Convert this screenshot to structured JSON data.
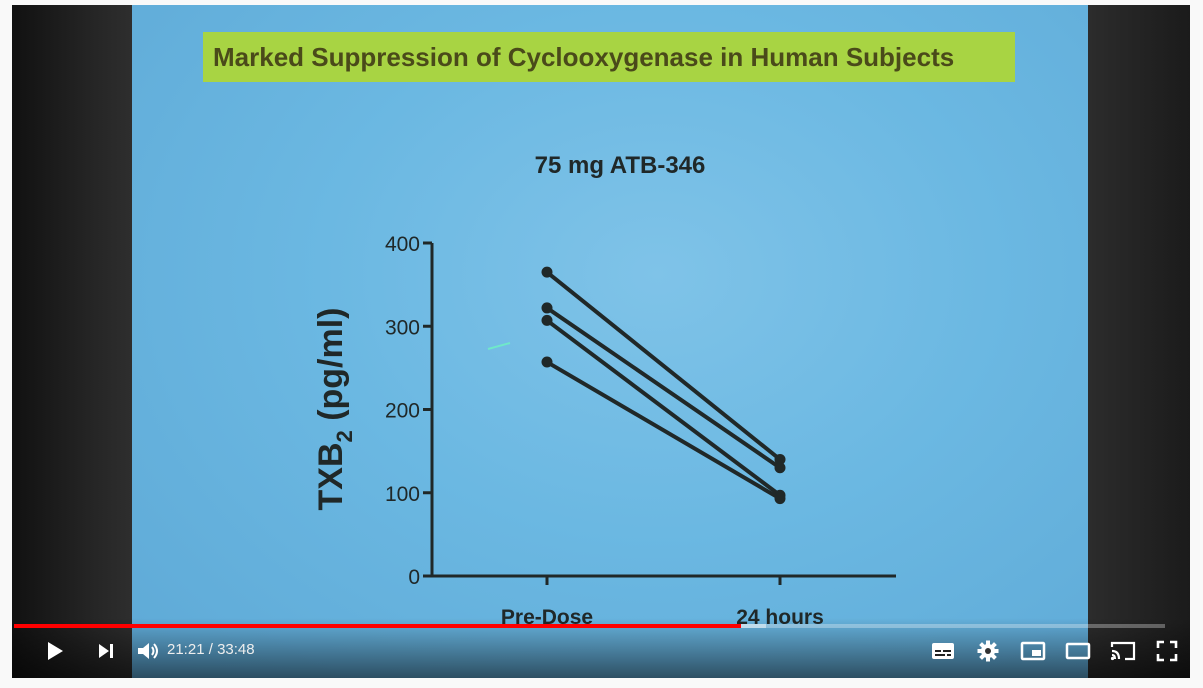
{
  "player": {
    "current_time": "21:21",
    "separator": " / ",
    "duration": "33:48",
    "progress_played": 0.6316,
    "progress_buffered": 0.6536,
    "colors": {
      "played": "#ff0000",
      "controls": "#ffffff"
    }
  },
  "slide": {
    "title": "Marked Suppression of Cyclooxygenase in Human Subjects",
    "colors": {
      "background": "#6bb8e2",
      "title_box": "#a8d443",
      "title_text": "#4a4a1a",
      "ink": "#202828"
    }
  },
  "chart_data": {
    "type": "line",
    "title": "75 mg ATB-346",
    "ylabel_main": "TXB",
    "ylabel_sub": "2",
    "ylabel_unit": " (pg/ml)",
    "categories": [
      "Pre-Dose",
      "24 hours"
    ],
    "yticks": [
      "0",
      "100",
      "200",
      "300",
      "400"
    ],
    "ylim": [
      0,
      400
    ],
    "series": [
      {
        "values": [
          365,
          140
        ]
      },
      {
        "values": [
          322,
          130
        ]
      },
      {
        "values": [
          307,
          97
        ]
      },
      {
        "values": [
          257,
          93
        ]
      }
    ]
  },
  "icons": {
    "play": "play-icon",
    "next": "next-icon",
    "volume": "volume-icon",
    "subtitles": "subtitles-icon",
    "settings": "gear-icon",
    "miniplayer": "miniplayer-icon",
    "theater": "theater-icon",
    "cast": "cast-icon",
    "fullscreen": "fullscreen-icon"
  }
}
